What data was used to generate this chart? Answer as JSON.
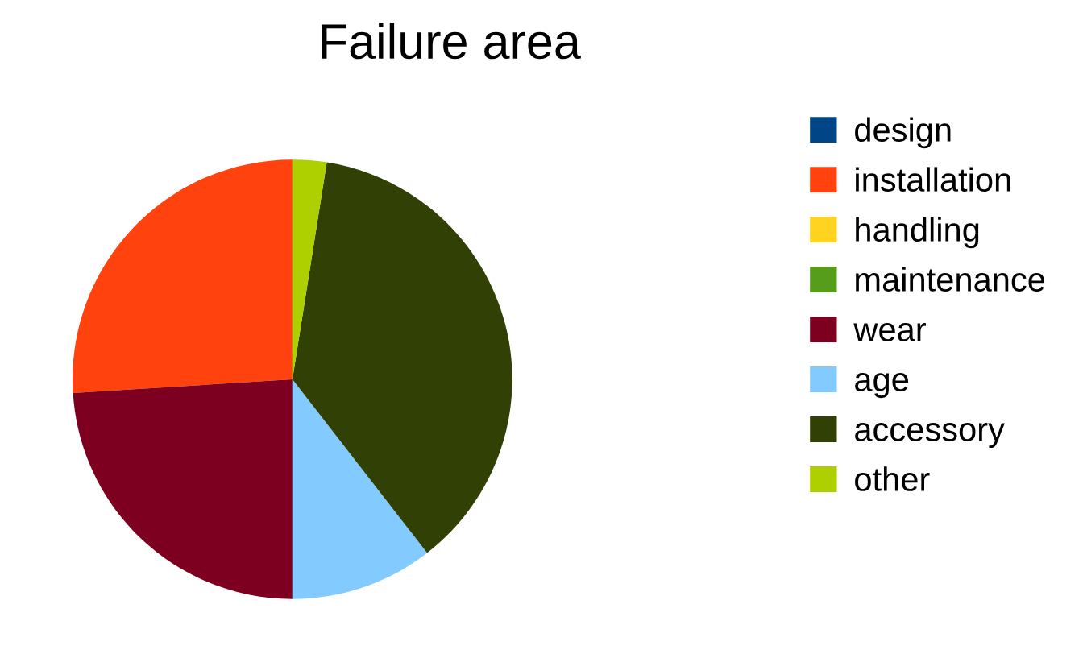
{
  "chart_data": {
    "type": "pie",
    "title": "Failure area",
    "categories": [
      "design",
      "installation",
      "handling",
      "maintenance",
      "wear",
      "age",
      "accessory",
      "other"
    ],
    "values": [
      0,
      26,
      0,
      0,
      24,
      10.5,
      37,
      2.5
    ],
    "colors": [
      "#004586",
      "#ff420e",
      "#ffd320",
      "#579d1c",
      "#7e0021",
      "#83caff",
      "#314004",
      "#aecf00"
    ],
    "legend": "right"
  }
}
